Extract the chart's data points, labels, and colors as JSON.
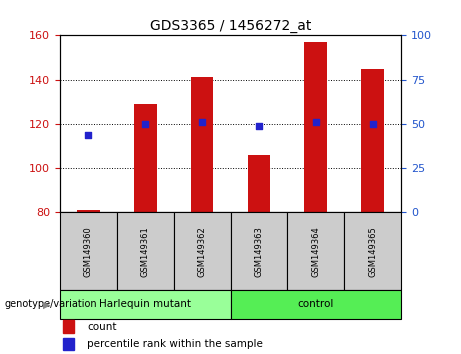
{
  "title": "GDS3365 / 1456272_at",
  "samples": [
    "GSM149360",
    "GSM149361",
    "GSM149362",
    "GSM149363",
    "GSM149364",
    "GSM149365"
  ],
  "count_values": [
    81,
    129,
    141,
    106,
    157,
    145
  ],
  "percentile_values": [
    44,
    50,
    51,
    49,
    51,
    50
  ],
  "ylim_left": [
    80,
    160
  ],
  "ylim_right": [
    0,
    100
  ],
  "yticks_left": [
    80,
    100,
    120,
    140,
    160
  ],
  "yticks_right": [
    0,
    25,
    50,
    75,
    100
  ],
  "bar_color": "#cc1111",
  "dot_color": "#2222cc",
  "groups": [
    {
      "label": "Harlequin mutant",
      "start": 0,
      "end": 2,
      "color": "#99ff99"
    },
    {
      "label": "control",
      "start": 3,
      "end": 5,
      "color": "#55ee55"
    }
  ],
  "group_label": "genotype/variation",
  "legend_count": "count",
  "legend_percentile": "percentile rank within the sample",
  "bar_width": 0.4,
  "bar_bottom": 80,
  "left_tick_color": "#cc1111",
  "right_tick_color": "#2255cc"
}
